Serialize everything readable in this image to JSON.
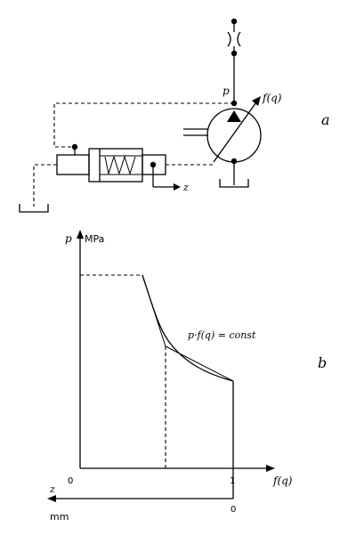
{
  "schematic": {
    "panel_label": "a",
    "pressure_label": "p",
    "pump_label": "f(q)",
    "spool_label": "z"
  },
  "graph": {
    "panel_label": "b",
    "y_axis_label": "p",
    "y_unit": "MPa",
    "x_axis_label": "f(q)",
    "origin_label": "0",
    "x_tick_one": "1",
    "curve_label": "p·f(q) = const",
    "z_axis_label": "z",
    "z_unit": "mm",
    "z_zero_label": "0"
  }
}
